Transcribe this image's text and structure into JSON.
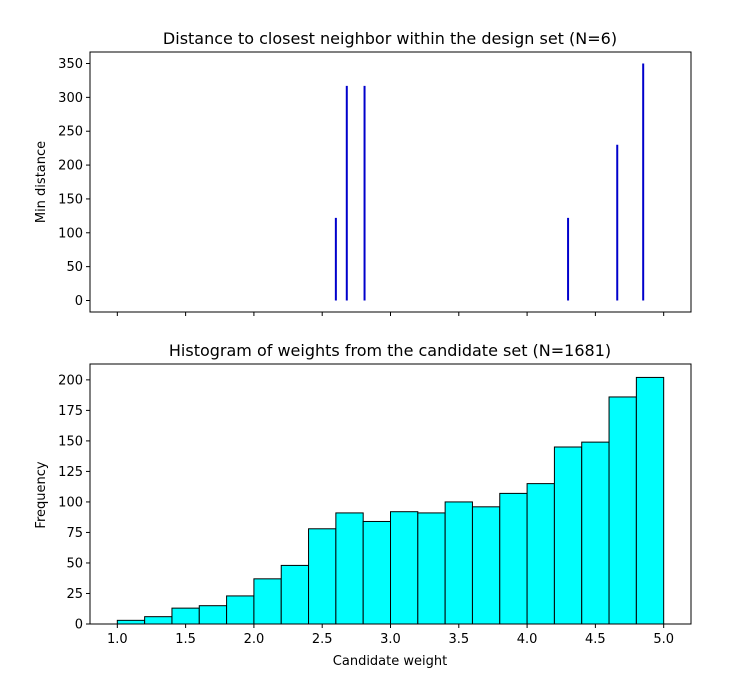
{
  "chart_data": [
    {
      "type": "stem",
      "title": "Distance to closest neighbor within the design set (N=6)",
      "xlabel": "",
      "ylabel": "Min distance",
      "xlim": [
        0.8,
        5.2
      ],
      "ylim": [
        -17,
        367
      ],
      "yticks": [
        0,
        50,
        100,
        150,
        200,
        250,
        300,
        350
      ],
      "xticks": [
        1.0,
        1.5,
        2.0,
        2.5,
        3.0,
        3.5,
        4.0,
        4.5,
        5.0
      ],
      "x_tick_labels_visible": false,
      "color": "#0000cc",
      "points": [
        {
          "x": 2.6,
          "y": 122
        },
        {
          "x": 2.68,
          "y": 317
        },
        {
          "x": 2.81,
          "y": 317
        },
        {
          "x": 4.3,
          "y": 122
        },
        {
          "x": 4.66,
          "y": 230
        },
        {
          "x": 4.85,
          "y": 350
        }
      ]
    },
    {
      "type": "bar",
      "title": "Histogram of weights from the candidate set (N=1681)",
      "xlabel": "Candidate weight",
      "ylabel": "Frequency",
      "xlim": [
        0.8,
        5.2
      ],
      "ylim": [
        0,
        213
      ],
      "xticks": [
        1.0,
        1.5,
        2.0,
        2.5,
        3.0,
        3.5,
        4.0,
        4.5,
        5.0
      ],
      "xtick_labels": [
        "1.0",
        "1.5",
        "2.0",
        "2.5",
        "3.0",
        "3.5",
        "4.0",
        "4.5",
        "5.0"
      ],
      "yticks": [
        0,
        25,
        50,
        75,
        100,
        125,
        150,
        175,
        200
      ],
      "fill": "#00ffff",
      "edge": "#000000",
      "bin_start": 1.0,
      "bin_width": 0.2,
      "values": [
        3,
        6,
        13,
        15,
        23,
        37,
        48,
        78,
        91,
        84,
        92,
        91,
        100,
        96,
        107,
        115,
        145,
        149,
        186,
        202
      ]
    }
  ]
}
